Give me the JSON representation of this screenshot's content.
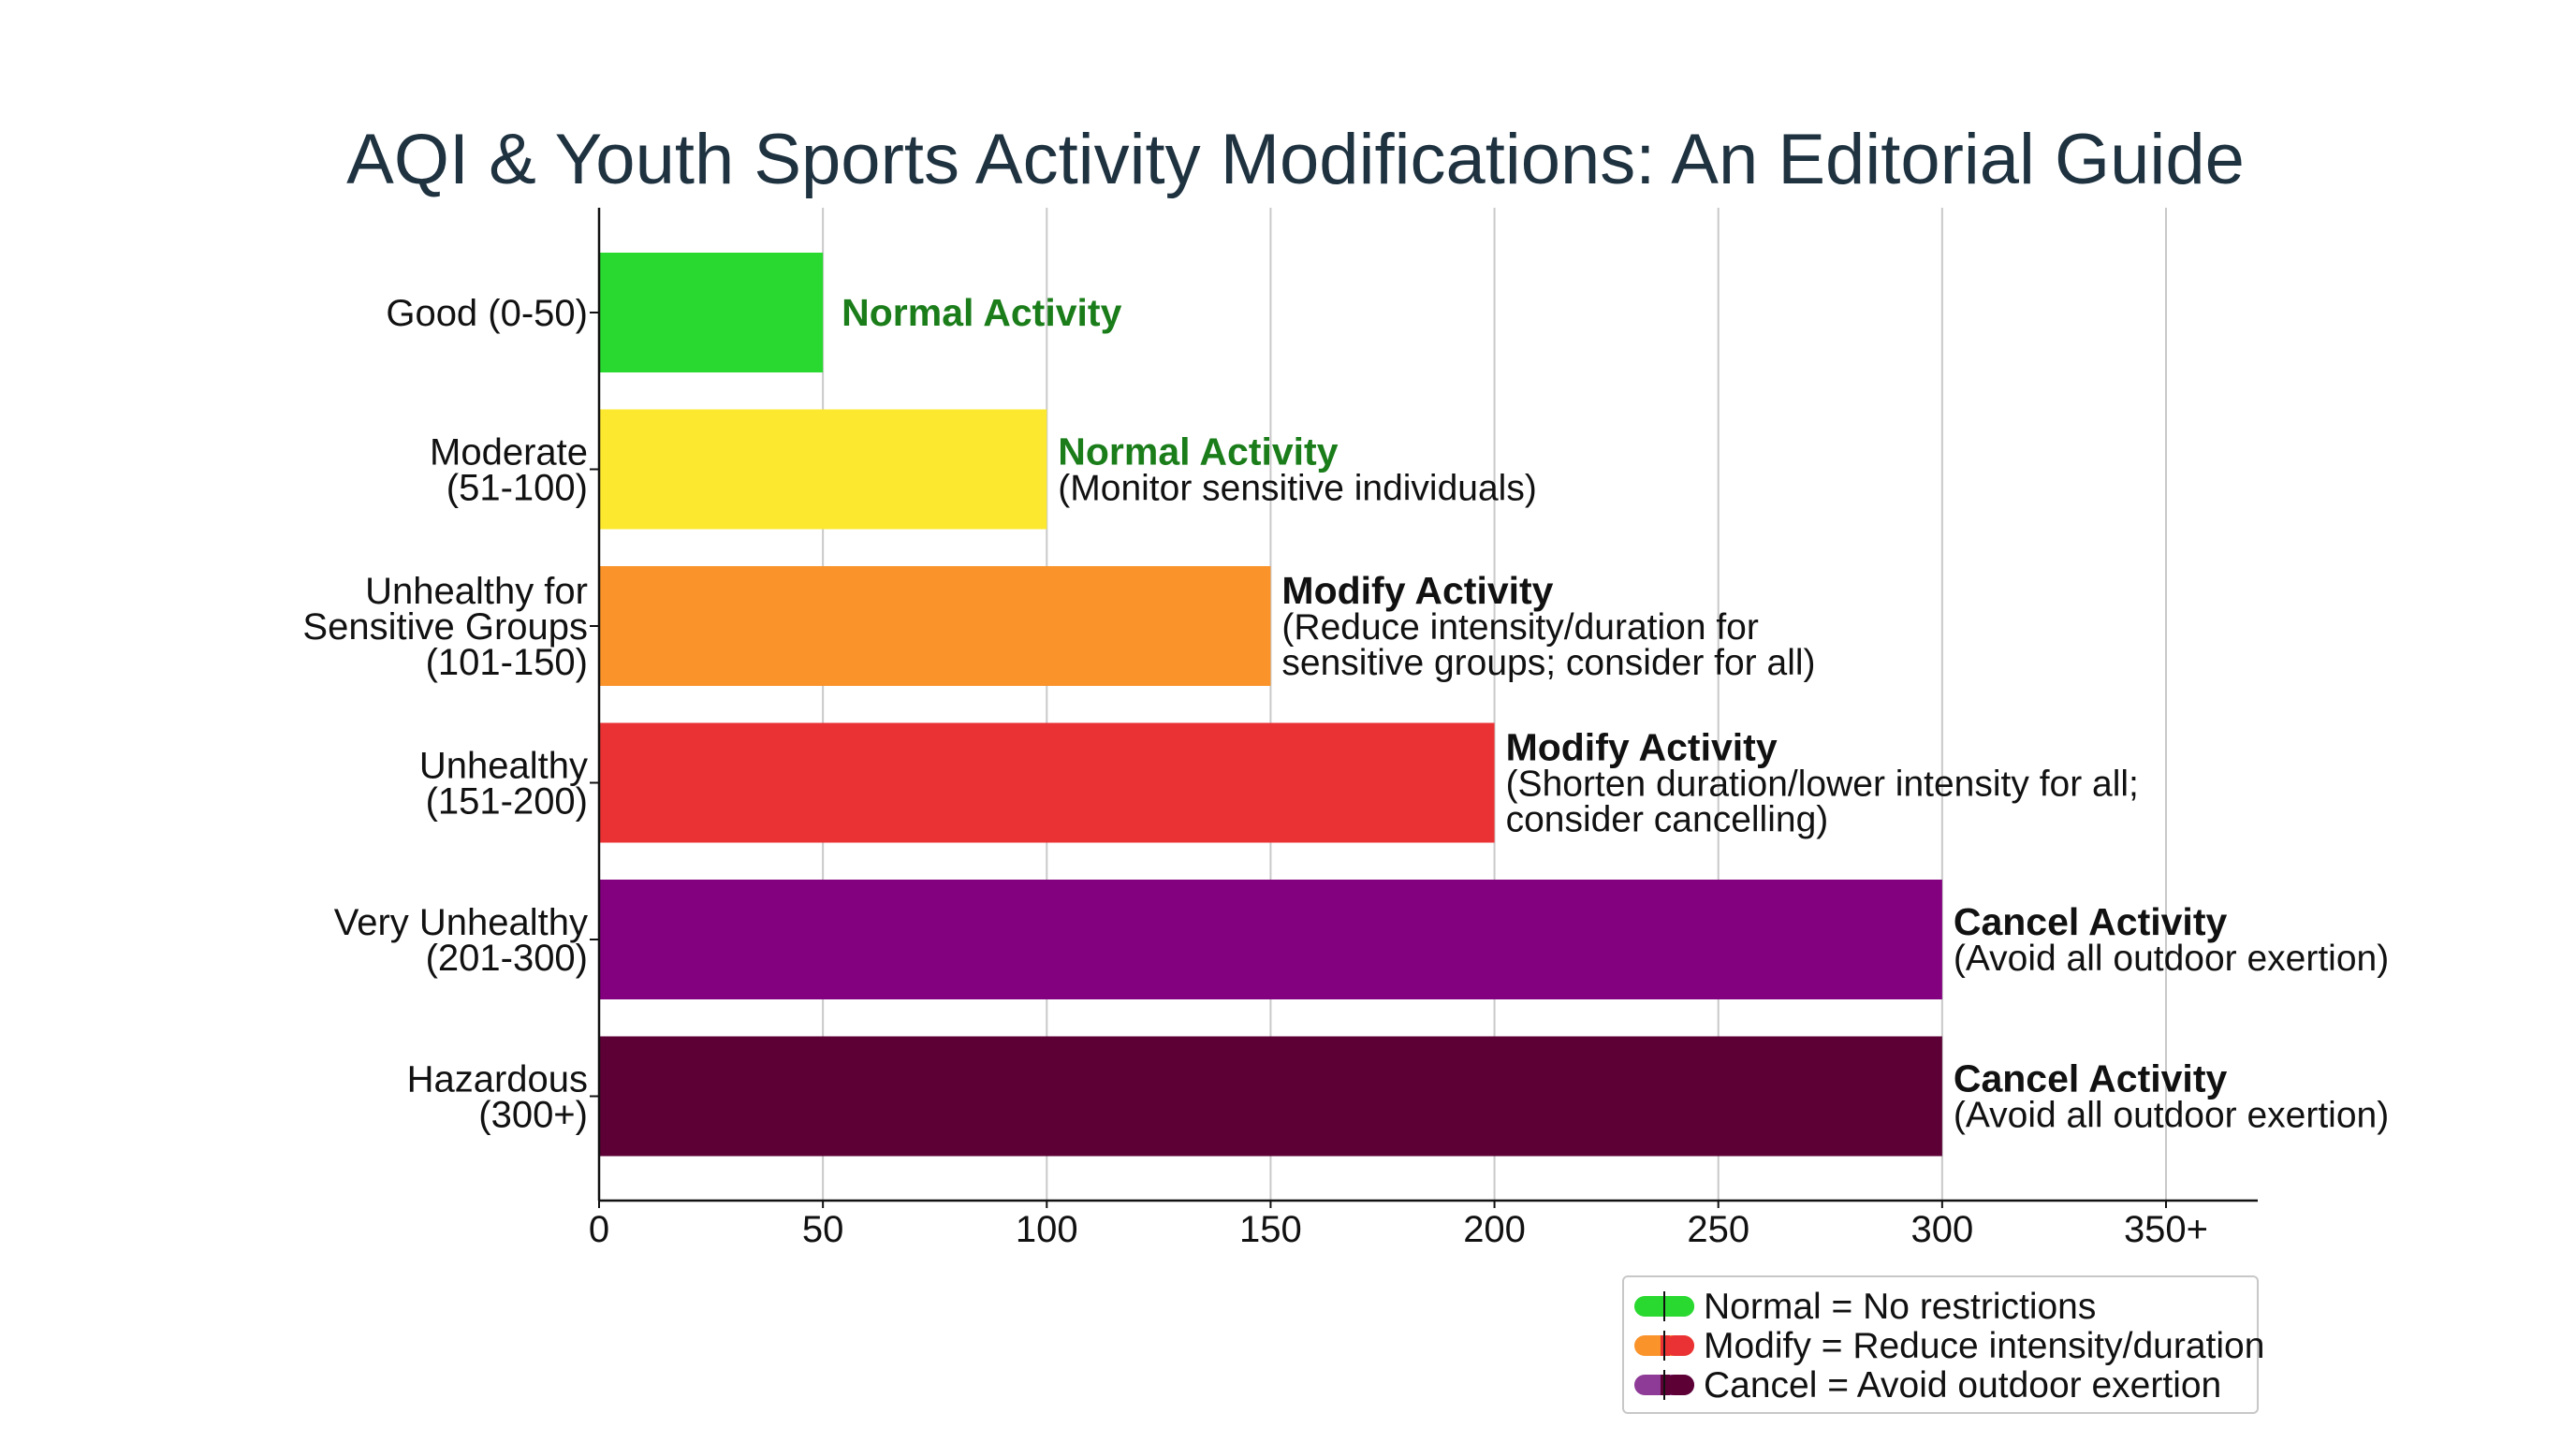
{
  "chart_data": {
    "type": "bar",
    "orientation": "horizontal",
    "title": "AQI & Youth Sports Activity Modifications: An Editorial Guide",
    "xlabel": "",
    "ylabel": "",
    "xlim": [
      0,
      355
    ],
    "x_ticks": [
      {
        "value": 0,
        "label": "0"
      },
      {
        "value": 50,
        "label": "50"
      },
      {
        "value": 100,
        "label": "100"
      },
      {
        "value": 150,
        "label": "150"
      },
      {
        "value": 200,
        "label": "200"
      },
      {
        "value": 250,
        "label": "250"
      },
      {
        "value": 300,
        "label": "300"
      },
      {
        "value": 350,
        "label": "350+"
      }
    ],
    "grid": "vertical",
    "legend_position": "bottom-right",
    "bars": [
      {
        "category_lines": [
          "Good (0-50)"
        ],
        "value": 50,
        "color": "#29d92f",
        "annotation_head": "Normal Activity",
        "annotation_head_color": "#1a7d1a",
        "annotation_detail": []
      },
      {
        "category_lines": [
          "Moderate",
          "(51-100)"
        ],
        "value": 100,
        "color": "#fce92f",
        "annotation_head": "Normal Activity",
        "annotation_head_color": "#1a7d1a",
        "annotation_detail": [
          "(Monitor sensitive individuals)"
        ]
      },
      {
        "category_lines": [
          "Unhealthy for",
          "Sensitive Groups",
          "(101-150)"
        ],
        "value": 150,
        "color": "#f9932a",
        "annotation_head": "Modify Activity",
        "annotation_head_color": "#111111",
        "annotation_detail": [
          "(Reduce intensity/duration for",
          "sensitive groups; consider for all)"
        ]
      },
      {
        "category_lines": [
          "Unhealthy",
          "(151-200)"
        ],
        "value": 200,
        "color": "#ea3234",
        "annotation_head": "Modify Activity",
        "annotation_head_color": "#111111",
        "annotation_detail": [
          "(Shorten duration/lower intensity for all;",
          "consider cancelling)"
        ]
      },
      {
        "category_lines": [
          "Very Unhealthy",
          "(201-300)"
        ],
        "value": 300,
        "color": "#83017f",
        "annotation_head": "Cancel Activity",
        "annotation_head_color": "#111111",
        "annotation_detail": [
          "(Avoid all outdoor exertion)"
        ]
      },
      {
        "category_lines": [
          "Hazardous",
          "(300+)"
        ],
        "value": 300,
        "color": "#5c0036",
        "annotation_head": "Cancel Activity",
        "annotation_head_color": "#111111",
        "annotation_detail": [
          "(Avoid all outdoor exertion)"
        ]
      }
    ],
    "legend": [
      {
        "label": "Normal = No restrictions",
        "colors": [
          "#29d92f",
          "#29d92f"
        ]
      },
      {
        "label": "Modify = Reduce intensity/duration",
        "colors": [
          "#f9932a",
          "#ea3234"
        ]
      },
      {
        "label": "Cancel = Avoid outdoor exertion",
        "colors": [
          "#8e3a97",
          "#5c0036"
        ]
      }
    ]
  }
}
